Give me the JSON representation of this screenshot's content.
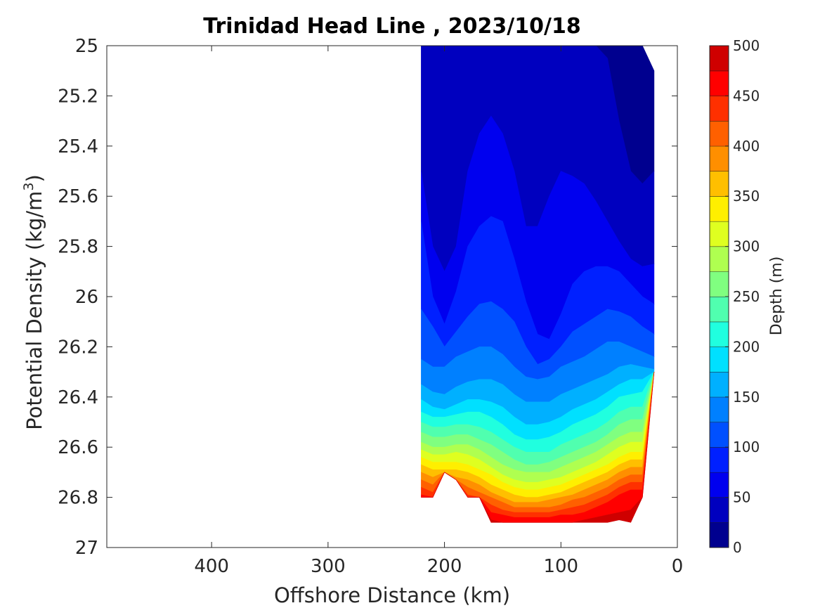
{
  "chart_data": {
    "type": "contour",
    "title": "Trinidad Head Line , 2023/10/18",
    "xlabel": "Offshore Distance (km)",
    "ylabel_prefix": "Potential Density (kg/m",
    "ylabel_sup": "3",
    "ylabel_suffix": ")",
    "xlim": [
      490,
      0
    ],
    "ylim": [
      27,
      25
    ],
    "x_ticks": [
      {
        "value": 400,
        "label": "400"
      },
      {
        "value": 300,
        "label": "300"
      },
      {
        "value": 200,
        "label": "200"
      },
      {
        "value": 100,
        "label": "100"
      },
      {
        "value": 0,
        "label": "0"
      }
    ],
    "y_ticks": [
      {
        "value": 25,
        "label": "25"
      },
      {
        "value": 25.2,
        "label": "25.2"
      },
      {
        "value": 25.4,
        "label": "25.4"
      },
      {
        "value": 25.6,
        "label": "25.6"
      },
      {
        "value": 25.8,
        "label": "25.8"
      },
      {
        "value": 26,
        "label": "26"
      },
      {
        "value": 26.2,
        "label": "26.2"
      },
      {
        "value": 26.4,
        "label": "26.4"
      },
      {
        "value": 26.6,
        "label": "26.6"
      },
      {
        "value": 26.8,
        "label": "26.8"
      },
      {
        "value": 27,
        "label": "27"
      }
    ],
    "colorbar": {
      "label": "Depth (m)",
      "min": 0,
      "max": 500,
      "step": 25,
      "tick_labels": [
        "0",
        "50",
        "100",
        "150",
        "200",
        "250",
        "300",
        "350",
        "400",
        "450",
        "500"
      ],
      "colors": [
        "#00008f",
        "#0000bf",
        "#0000ef",
        "#0020ff",
        "#0050ff",
        "#0080ff",
        "#00b0ff",
        "#00e0ff",
        "#20ffdf",
        "#50ffaf",
        "#80ff80",
        "#afff50",
        "#dfff20",
        "#ffef00",
        "#ffbf00",
        "#ff8f00",
        "#ff6000",
        "#ff3000",
        "#ff0000",
        "#cf0000"
      ]
    },
    "section": {
      "stations_km": [
        220,
        210,
        200,
        190,
        180,
        170,
        160,
        150,
        140,
        130,
        120,
        110,
        100,
        90,
        80,
        70,
        60,
        50,
        40,
        30,
        20
      ],
      "bottom_density": [
        26.8,
        26.8,
        26.7,
        26.73,
        26.8,
        26.8,
        26.9,
        26.9,
        26.9,
        26.9,
        26.9,
        26.9,
        26.9,
        26.9,
        26.9,
        26.9,
        26.9,
        26.89,
        26.9,
        26.8,
        26.3
      ],
      "top_density": [
        25,
        25,
        25,
        25,
        25,
        25,
        25,
        25,
        25,
        25,
        25,
        25,
        25,
        25,
        25,
        25,
        25,
        25,
        25,
        25,
        25.1
      ],
      "isobaths": [
        {
          "depth": 25,
          "density": [
            null,
            null,
            null,
            null,
            null,
            null,
            null,
            null,
            null,
            null,
            null,
            null,
            null,
            null,
            null,
            null,
            25.05,
            25.3,
            25.5,
            25.55,
            25.5
          ]
        },
        {
          "depth": 50,
          "density": [
            25.5,
            25.8,
            25.9,
            25.8,
            25.5,
            25.35,
            25.28,
            25.35,
            25.5,
            25.72,
            25.72,
            25.6,
            25.5,
            25.52,
            25.55,
            25.62,
            25.7,
            25.78,
            25.85,
            25.88,
            25.87
          ]
        },
        {
          "depth": 75,
          "density": [
            25.7,
            26.0,
            26.11,
            25.98,
            25.8,
            25.72,
            25.68,
            25.7,
            25.85,
            26.02,
            26.15,
            26.17,
            26.07,
            25.95,
            25.9,
            25.88,
            25.88,
            25.9,
            25.95,
            26.0,
            26.03
          ]
        },
        {
          "depth": 100,
          "density": [
            26.05,
            26.12,
            26.2,
            26.14,
            26.08,
            26.03,
            26.02,
            26.05,
            26.1,
            26.2,
            26.27,
            26.25,
            26.2,
            26.14,
            26.11,
            26.08,
            26.05,
            26.06,
            26.08,
            26.12,
            26.15
          ]
        },
        {
          "depth": 125,
          "density": [
            26.25,
            26.28,
            26.28,
            26.24,
            26.22,
            26.2,
            26.2,
            26.23,
            26.28,
            26.32,
            26.33,
            26.32,
            26.28,
            26.26,
            26.24,
            26.21,
            26.18,
            26.18,
            26.2,
            26.22,
            26.24
          ]
        },
        {
          "depth": 150,
          "density": [
            26.35,
            26.38,
            26.39,
            26.36,
            26.34,
            26.33,
            26.33,
            26.35,
            26.39,
            26.42,
            26.42,
            26.42,
            26.39,
            26.37,
            26.35,
            26.33,
            26.31,
            26.28,
            26.27,
            26.28,
            26.29
          ]
        },
        {
          "depth": 175,
          "density": [
            26.41,
            26.44,
            26.45,
            26.43,
            26.41,
            26.41,
            26.42,
            26.44,
            26.48,
            26.51,
            26.51,
            26.5,
            26.48,
            26.45,
            26.43,
            26.41,
            26.38,
            26.35,
            26.33,
            26.33,
            26.32
          ]
        },
        {
          "depth": 200,
          "density": [
            26.46,
            26.48,
            26.48,
            26.47,
            26.46,
            26.46,
            26.48,
            26.51,
            26.55,
            26.57,
            26.57,
            26.56,
            26.54,
            26.51,
            26.49,
            26.47,
            26.44,
            26.4,
            26.39,
            26.38,
            26.37
          ]
        },
        {
          "depth": 225,
          "density": [
            26.5,
            26.52,
            26.52,
            26.51,
            26.51,
            26.52,
            26.54,
            26.57,
            26.6,
            26.62,
            26.62,
            26.62,
            26.59,
            26.57,
            26.55,
            26.53,
            26.5,
            26.46,
            26.44,
            26.44,
            26.43
          ]
        },
        {
          "depth": 250,
          "density": [
            26.54,
            26.56,
            26.56,
            26.55,
            26.55,
            26.57,
            26.59,
            26.62,
            26.65,
            26.67,
            26.67,
            26.66,
            26.64,
            26.62,
            26.6,
            26.58,
            26.55,
            26.51,
            26.49,
            26.49,
            26.48
          ]
        },
        {
          "depth": 275,
          "density": [
            26.58,
            26.6,
            26.6,
            26.59,
            26.59,
            26.61,
            26.64,
            26.67,
            26.69,
            26.7,
            26.7,
            26.7,
            26.68,
            26.66,
            26.64,
            26.62,
            26.59,
            26.56,
            26.54,
            26.54,
            26.53
          ]
        },
        {
          "depth": 300,
          "density": [
            26.61,
            26.63,
            26.63,
            26.62,
            26.63,
            26.65,
            26.68,
            26.71,
            26.73,
            26.74,
            26.74,
            26.73,
            26.72,
            26.7,
            26.68,
            26.66,
            26.63,
            26.6,
            26.58,
            26.58,
            26.57
          ]
        },
        {
          "depth": 325,
          "density": [
            26.64,
            26.66,
            26.66,
            26.66,
            26.67,
            26.69,
            26.71,
            26.74,
            26.76,
            26.77,
            26.77,
            26.76,
            26.75,
            26.73,
            26.71,
            26.69,
            26.67,
            26.64,
            26.62,
            26.62,
            26.61
          ]
        },
        {
          "depth": 350,
          "density": [
            26.67,
            26.69,
            26.69,
            26.69,
            26.7,
            26.72,
            26.75,
            26.77,
            26.79,
            26.8,
            26.8,
            26.79,
            26.78,
            26.76,
            26.74,
            26.72,
            26.7,
            26.67,
            26.65,
            26.65,
            26.64
          ]
        },
        {
          "depth": 375,
          "density": [
            26.7,
            26.72,
            26.72,
            26.72,
            26.73,
            26.75,
            26.78,
            26.8,
            26.82,
            26.82,
            26.82,
            26.81,
            26.8,
            26.79,
            26.77,
            26.75,
            26.73,
            26.7,
            26.68,
            26.68,
            26.67
          ]
        },
        {
          "depth": 400,
          "density": [
            26.73,
            26.75,
            26.75,
            26.75,
            26.76,
            26.78,
            26.8,
            26.82,
            26.84,
            26.84,
            26.84,
            26.84,
            26.83,
            26.81,
            26.8,
            26.78,
            26.76,
            26.73,
            26.71,
            26.71,
            26.7
          ]
        },
        {
          "depth": 425,
          "density": [
            26.76,
            26.78,
            26.78,
            26.78,
            26.79,
            26.81,
            26.83,
            26.85,
            26.86,
            26.86,
            26.86,
            26.86,
            26.85,
            26.84,
            26.83,
            26.81,
            26.79,
            26.76,
            26.74,
            26.74,
            26.73
          ]
        },
        {
          "depth": 450,
          "density": [
            26.79,
            26.81,
            26.81,
            26.81,
            26.82,
            26.84,
            26.86,
            26.87,
            26.88,
            26.88,
            26.88,
            26.88,
            26.87,
            26.87,
            26.86,
            26.84,
            26.82,
            26.79,
            26.77,
            26.77,
            26.76
          ]
        },
        {
          "depth": 475,
          "density": [
            26.83,
            26.85,
            26.85,
            26.85,
            26.86,
            26.87,
            26.89,
            26.9,
            26.9,
            26.9,
            26.9,
            26.9,
            26.9,
            26.9,
            26.89,
            26.88,
            26.87,
            26.86,
            26.85,
            26.8,
            26.79
          ]
        }
      ]
    }
  }
}
